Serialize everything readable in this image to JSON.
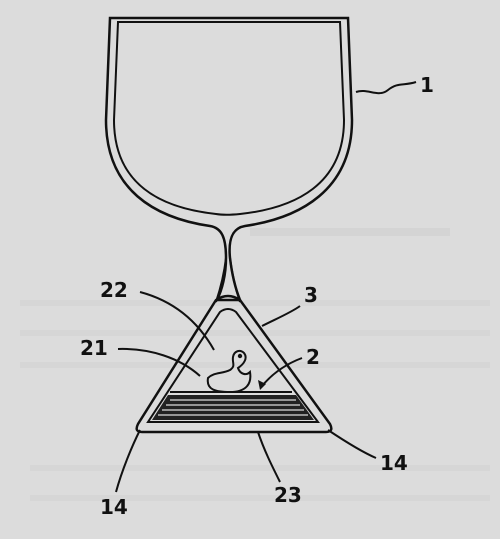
{
  "figure": {
    "labels": {
      "goblet": "1",
      "liquid_chamber": "2",
      "triangular_base": "3",
      "rim_left": "14",
      "rim_right": "14",
      "float": "21",
      "duck_figure": "22",
      "liquid": "23"
    }
  },
  "colors": {
    "paper": "#dcdcdc",
    "ink": "#111111",
    "bleed_through": "#c6c6c6"
  }
}
